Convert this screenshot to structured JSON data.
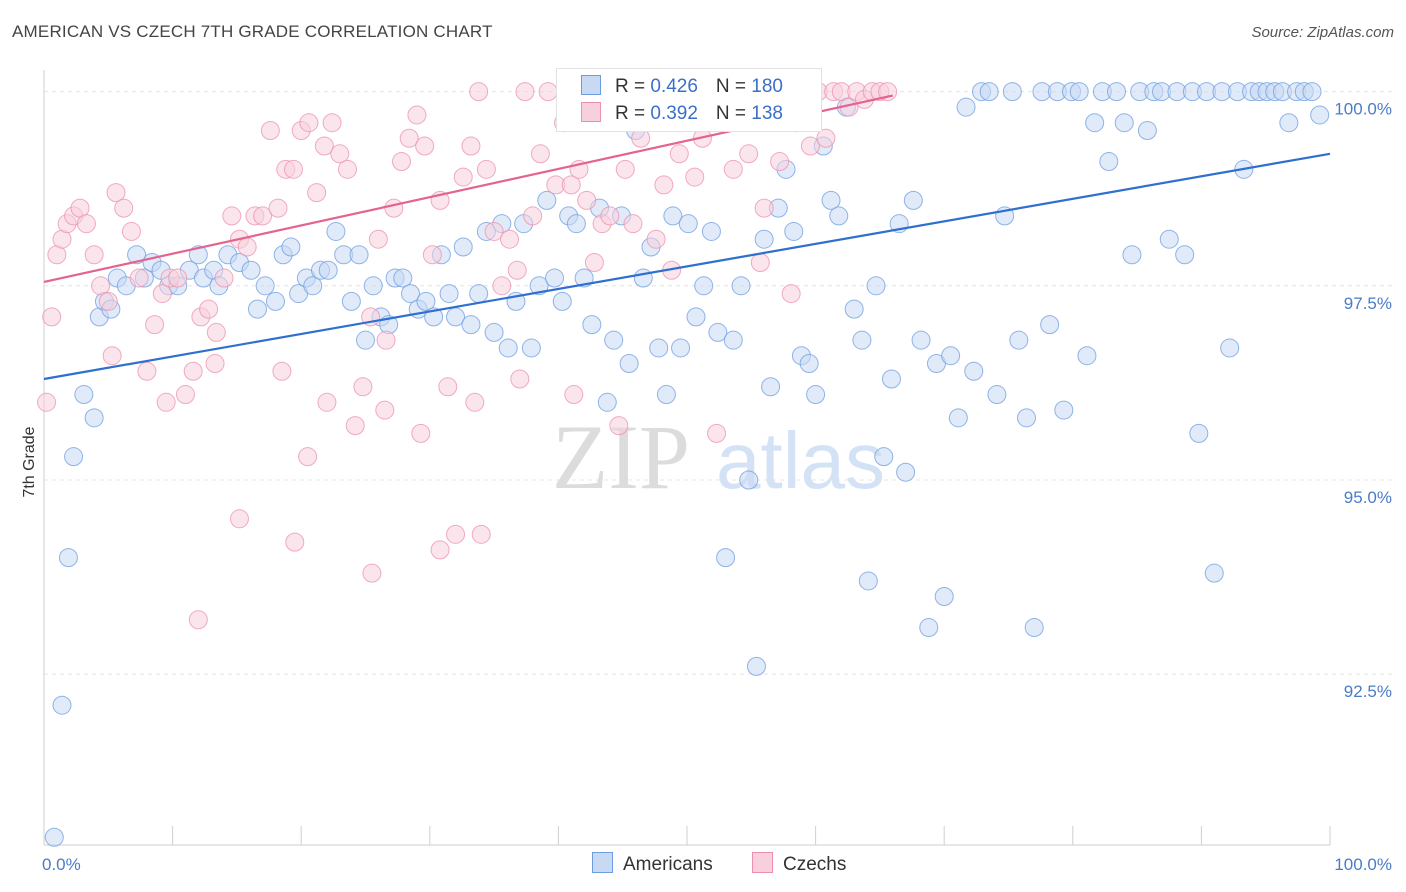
{
  "title": "AMERICAN VS CZECH 7TH GRADE CORRELATION CHART",
  "source": "Source: ZipAtlas.com",
  "watermark": {
    "zip": "ZIP",
    "atlas": "atlas"
  },
  "colors": {
    "americans": "#6b9de0",
    "americans_fill": "#c8d9f4",
    "czechs": "#ec90ae",
    "czechs_fill": "#f8cfdd",
    "line_americans": "#2f6fd0",
    "line_czechs": "#e46390",
    "tick": "#4a7cc8"
  },
  "legend": {
    "americans": {
      "r_label": "R = ",
      "r_value": "0.426",
      "n_label": "N = ",
      "n_value": "180"
    },
    "czechs": {
      "r_label": "R = ",
      "r_value": "0.392",
      "n_label": "N = ",
      "n_value": "138"
    }
  },
  "chart_data": {
    "type": "scatter",
    "title": "AMERICAN VS CZECH 7TH GRADE CORRELATION CHART",
    "xlabel": "",
    "ylabel": "7th Grade",
    "xlim": [
      0,
      100
    ],
    "ylim": [
      90.3,
      100.15
    ],
    "x_tick_labels": [
      "0.0%",
      "100.0%"
    ],
    "y_ticks": [
      92.5,
      95.0,
      97.5,
      100.0
    ],
    "y_tick_labels": [
      "92.5%",
      "95.0%",
      "97.5%",
      "100.0%"
    ],
    "grid": true,
    "legend_position": "bottom-center",
    "series": [
      {
        "name": "Americans",
        "trend": {
          "x": [
            0,
            100
          ],
          "y": [
            96.3,
            99.2
          ]
        },
        "points": [
          [
            0.8,
            90.4
          ],
          [
            1.4,
            92.1
          ],
          [
            1.9,
            94.0
          ],
          [
            2.3,
            95.3
          ],
          [
            3.1,
            96.1
          ],
          [
            3.9,
            95.8
          ],
          [
            4.3,
            97.1
          ],
          [
            4.7,
            97.3
          ],
          [
            5.2,
            97.2
          ],
          [
            5.7,
            97.6
          ],
          [
            6.4,
            97.5
          ],
          [
            7.2,
            97.9
          ],
          [
            7.8,
            97.6
          ],
          [
            8.4,
            97.8
          ],
          [
            9.1,
            97.7
          ],
          [
            9.7,
            97.5
          ],
          [
            10.4,
            97.5
          ],
          [
            11.3,
            97.7
          ],
          [
            12.0,
            97.9
          ],
          [
            12.4,
            97.6
          ],
          [
            13.2,
            97.7
          ],
          [
            13.6,
            97.5
          ],
          [
            14.3,
            97.9
          ],
          [
            15.2,
            97.8
          ],
          [
            16.1,
            97.7
          ],
          [
            16.6,
            97.2
          ],
          [
            17.2,
            97.5
          ],
          [
            18.0,
            97.3
          ],
          [
            18.6,
            97.9
          ],
          [
            19.2,
            98.0
          ],
          [
            19.8,
            97.4
          ],
          [
            20.4,
            97.6
          ],
          [
            20.9,
            97.5
          ],
          [
            21.5,
            97.7
          ],
          [
            22.1,
            97.7
          ],
          [
            22.7,
            98.2
          ],
          [
            23.3,
            97.9
          ],
          [
            23.9,
            97.3
          ],
          [
            24.5,
            97.9
          ],
          [
            25.0,
            96.8
          ],
          [
            25.6,
            97.5
          ],
          [
            26.2,
            97.1
          ],
          [
            26.8,
            97.0
          ],
          [
            27.3,
            97.6
          ],
          [
            27.9,
            97.6
          ],
          [
            28.5,
            97.4
          ],
          [
            29.1,
            97.2
          ],
          [
            29.7,
            97.3
          ],
          [
            30.3,
            97.1
          ],
          [
            30.9,
            97.9
          ],
          [
            31.5,
            97.4
          ],
          [
            32.0,
            97.1
          ],
          [
            32.6,
            98.0
          ],
          [
            33.2,
            97.0
          ],
          [
            33.8,
            97.4
          ],
          [
            34.4,
            98.2
          ],
          [
            35.0,
            96.9
          ],
          [
            35.6,
            98.3
          ],
          [
            36.1,
            96.7
          ],
          [
            36.7,
            97.3
          ],
          [
            37.3,
            98.3
          ],
          [
            37.9,
            96.7
          ],
          [
            38.5,
            97.5
          ],
          [
            39.1,
            98.6
          ],
          [
            39.7,
            97.6
          ],
          [
            40.3,
            97.3
          ],
          [
            40.8,
            98.4
          ],
          [
            41.4,
            98.3
          ],
          [
            42.0,
            97.6
          ],
          [
            42.6,
            97.0
          ],
          [
            43.2,
            98.5
          ],
          [
            43.8,
            96.0
          ],
          [
            44.3,
            96.8
          ],
          [
            44.9,
            98.4
          ],
          [
            45.5,
            96.5
          ],
          [
            46.0,
            99.5
          ],
          [
            46.6,
            97.6
          ],
          [
            47.2,
            98.0
          ],
          [
            47.8,
            96.7
          ],
          [
            48.4,
            96.1
          ],
          [
            48.9,
            98.4
          ],
          [
            49.5,
            96.7
          ],
          [
            50.1,
            98.3
          ],
          [
            50.7,
            97.1
          ],
          [
            51.3,
            97.5
          ],
          [
            51.9,
            98.2
          ],
          [
            52.4,
            96.9
          ],
          [
            53.0,
            94.0
          ],
          [
            53.6,
            96.8
          ],
          [
            54.2,
            97.5
          ],
          [
            54.8,
            95.0
          ],
          [
            55.4,
            92.6
          ],
          [
            56.0,
            98.1
          ],
          [
            56.5,
            96.2
          ],
          [
            57.1,
            98.5
          ],
          [
            57.7,
            99.0
          ],
          [
            58.3,
            98.2
          ],
          [
            58.9,
            96.6
          ],
          [
            59.5,
            96.5
          ],
          [
            60.0,
            96.1
          ],
          [
            60.6,
            99.3
          ],
          [
            61.2,
            98.6
          ],
          [
            61.8,
            98.4
          ],
          [
            62.4,
            99.8
          ],
          [
            63.0,
            97.2
          ],
          [
            63.6,
            96.8
          ],
          [
            64.1,
            93.7
          ],
          [
            64.7,
            97.5
          ],
          [
            65.3,
            95.3
          ],
          [
            65.9,
            96.3
          ],
          [
            66.5,
            98.3
          ],
          [
            67.0,
            95.1
          ],
          [
            67.6,
            98.6
          ],
          [
            68.2,
            96.8
          ],
          [
            68.8,
            93.1
          ],
          [
            69.4,
            96.5
          ],
          [
            70.0,
            93.5
          ],
          [
            70.5,
            96.6
          ],
          [
            71.1,
            95.8
          ],
          [
            71.7,
            99.8
          ],
          [
            72.3,
            96.4
          ],
          [
            72.9,
            100.0
          ],
          [
            73.5,
            100.0
          ],
          [
            74.1,
            96.1
          ],
          [
            74.7,
            98.4
          ],
          [
            75.3,
            100.0
          ],
          [
            75.8,
            96.8
          ],
          [
            76.4,
            95.8
          ],
          [
            77.0,
            93.1
          ],
          [
            77.6,
            100.0
          ],
          [
            78.2,
            97.0
          ],
          [
            78.8,
            100.0
          ],
          [
            79.3,
            95.9
          ],
          [
            79.9,
            100.0
          ],
          [
            80.5,
            100.0
          ],
          [
            81.1,
            96.6
          ],
          [
            81.7,
            99.6
          ],
          [
            82.3,
            100.0
          ],
          [
            82.8,
            99.1
          ],
          [
            83.4,
            100.0
          ],
          [
            84.0,
            99.6
          ],
          [
            84.6,
            97.9
          ],
          [
            85.2,
            100.0
          ],
          [
            85.8,
            99.5
          ],
          [
            86.3,
            100.0
          ],
          [
            86.9,
            100.0
          ],
          [
            87.5,
            98.1
          ],
          [
            88.1,
            100.0
          ],
          [
            88.7,
            97.9
          ],
          [
            89.3,
            100.0
          ],
          [
            89.8,
            95.6
          ],
          [
            90.4,
            100.0
          ],
          [
            91.0,
            93.8
          ],
          [
            91.6,
            100.0
          ],
          [
            92.2,
            96.7
          ],
          [
            92.8,
            100.0
          ],
          [
            93.3,
            99.0
          ],
          [
            93.9,
            100.0
          ],
          [
            94.5,
            100.0
          ],
          [
            95.1,
            100.0
          ],
          [
            95.7,
            100.0
          ],
          [
            96.3,
            100.0
          ],
          [
            96.8,
            99.6
          ],
          [
            97.4,
            100.0
          ],
          [
            98.0,
            100.0
          ],
          [
            98.6,
            100.0
          ],
          [
            99.2,
            99.7
          ]
        ]
      },
      {
        "name": "Czechs",
        "trend": {
          "x": [
            0,
            66
          ],
          "y": [
            97.55,
            99.95
          ]
        },
        "points": [
          [
            0.2,
            96.0
          ],
          [
            0.6,
            97.1
          ],
          [
            1.0,
            97.9
          ],
          [
            1.4,
            98.1
          ],
          [
            1.8,
            98.3
          ],
          [
            2.3,
            98.4
          ],
          [
            2.8,
            98.5
          ],
          [
            3.3,
            98.3
          ],
          [
            3.9,
            97.9
          ],
          [
            4.4,
            97.5
          ],
          [
            5.0,
            97.3
          ],
          [
            5.6,
            98.7
          ],
          [
            6.2,
            98.5
          ],
          [
            6.8,
            98.2
          ],
          [
            7.4,
            97.6
          ],
          [
            8.0,
            96.4
          ],
          [
            8.6,
            97.0
          ],
          [
            9.2,
            97.4
          ],
          [
            9.8,
            97.6
          ],
          [
            10.4,
            97.6
          ],
          [
            11.0,
            96.1
          ],
          [
            11.6,
            96.4
          ],
          [
            12.2,
            97.1
          ],
          [
            12.8,
            97.2
          ],
          [
            13.4,
            96.9
          ],
          [
            14.0,
            97.6
          ],
          [
            14.6,
            98.4
          ],
          [
            15.2,
            98.1
          ],
          [
            15.8,
            98.0
          ],
          [
            16.4,
            98.4
          ],
          [
            17.0,
            98.4
          ],
          [
            17.6,
            99.5
          ],
          [
            18.2,
            98.5
          ],
          [
            18.8,
            99.0
          ],
          [
            19.4,
            99.0
          ],
          [
            20.0,
            99.5
          ],
          [
            20.6,
            99.6
          ],
          [
            21.2,
            98.7
          ],
          [
            21.8,
            99.3
          ],
          [
            22.4,
            99.6
          ],
          [
            23.0,
            99.2
          ],
          [
            23.6,
            99.0
          ],
          [
            24.2,
            95.7
          ],
          [
            24.8,
            96.2
          ],
          [
            25.4,
            97.1
          ],
          [
            26.0,
            98.1
          ],
          [
            26.6,
            96.8
          ],
          [
            27.2,
            98.5
          ],
          [
            27.8,
            99.1
          ],
          [
            28.4,
            99.4
          ],
          [
            29.0,
            99.7
          ],
          [
            29.6,
            99.3
          ],
          [
            30.2,
            97.9
          ],
          [
            30.8,
            98.6
          ],
          [
            31.4,
            96.2
          ],
          [
            32.0,
            94.3
          ],
          [
            32.6,
            98.9
          ],
          [
            33.2,
            99.3
          ],
          [
            33.8,
            100.0
          ],
          [
            34.4,
            99.0
          ],
          [
            35.0,
            98.2
          ],
          [
            35.6,
            97.5
          ],
          [
            36.2,
            98.1
          ],
          [
            36.8,
            97.7
          ],
          [
            37.4,
            100.0
          ],
          [
            38.0,
            98.4
          ],
          [
            38.6,
            99.2
          ],
          [
            39.2,
            100.0
          ],
          [
            39.8,
            98.8
          ],
          [
            40.4,
            99.6
          ],
          [
            41.0,
            98.8
          ],
          [
            41.6,
            99.0
          ],
          [
            42.2,
            98.6
          ],
          [
            42.8,
            97.8
          ],
          [
            43.4,
            98.3
          ],
          [
            44.0,
            98.4
          ],
          [
            44.6,
            100.0
          ],
          [
            45.2,
            99.0
          ],
          [
            45.8,
            98.3
          ],
          [
            46.4,
            99.4
          ],
          [
            47.0,
            100.0
          ],
          [
            47.6,
            98.1
          ],
          [
            48.2,
            98.8
          ],
          [
            48.8,
            97.7
          ],
          [
            49.4,
            99.2
          ],
          [
            50.0,
            100.0
          ],
          [
            50.6,
            98.9
          ],
          [
            51.2,
            99.4
          ],
          [
            51.8,
            100.0
          ],
          [
            52.4,
            99.8
          ],
          [
            53.0,
            100.0
          ],
          [
            53.6,
            99.0
          ],
          [
            54.2,
            100.0
          ],
          [
            54.8,
            99.2
          ],
          [
            55.4,
            100.0
          ],
          [
            56.0,
            98.5
          ],
          [
            56.6,
            100.0
          ],
          [
            57.2,
            99.1
          ],
          [
            57.8,
            100.0
          ],
          [
            58.4,
            99.6
          ],
          [
            59.0,
            100.0
          ],
          [
            59.6,
            99.3
          ],
          [
            60.2,
            100.0
          ],
          [
            60.8,
            99.4
          ],
          [
            61.4,
            100.0
          ],
          [
            62.0,
            100.0
          ],
          [
            62.6,
            99.8
          ],
          [
            63.2,
            100.0
          ],
          [
            63.8,
            99.9
          ],
          [
            64.4,
            100.0
          ],
          [
            65.0,
            100.0
          ],
          [
            65.6,
            100.0
          ],
          [
            20.5,
            95.3
          ],
          [
            19.5,
            94.2
          ],
          [
            15.2,
            94.5
          ],
          [
            25.5,
            93.8
          ],
          [
            12.0,
            93.2
          ],
          [
            30.8,
            94.1
          ],
          [
            34.0,
            94.3
          ],
          [
            9.5,
            96.0
          ],
          [
            13.3,
            96.5
          ],
          [
            18.5,
            96.4
          ],
          [
            22.0,
            96.0
          ],
          [
            26.5,
            95.9
          ],
          [
            29.3,
            95.6
          ],
          [
            33.5,
            96.0
          ],
          [
            37.0,
            96.3
          ],
          [
            5.3,
            96.6
          ],
          [
            44.7,
            95.7
          ],
          [
            41.2,
            96.1
          ],
          [
            52.3,
            95.6
          ],
          [
            55.7,
            97.8
          ],
          [
            58.1,
            97.4
          ]
        ]
      }
    ]
  },
  "bottom_legend": {
    "americans": "Americans",
    "czechs": "Czechs"
  }
}
